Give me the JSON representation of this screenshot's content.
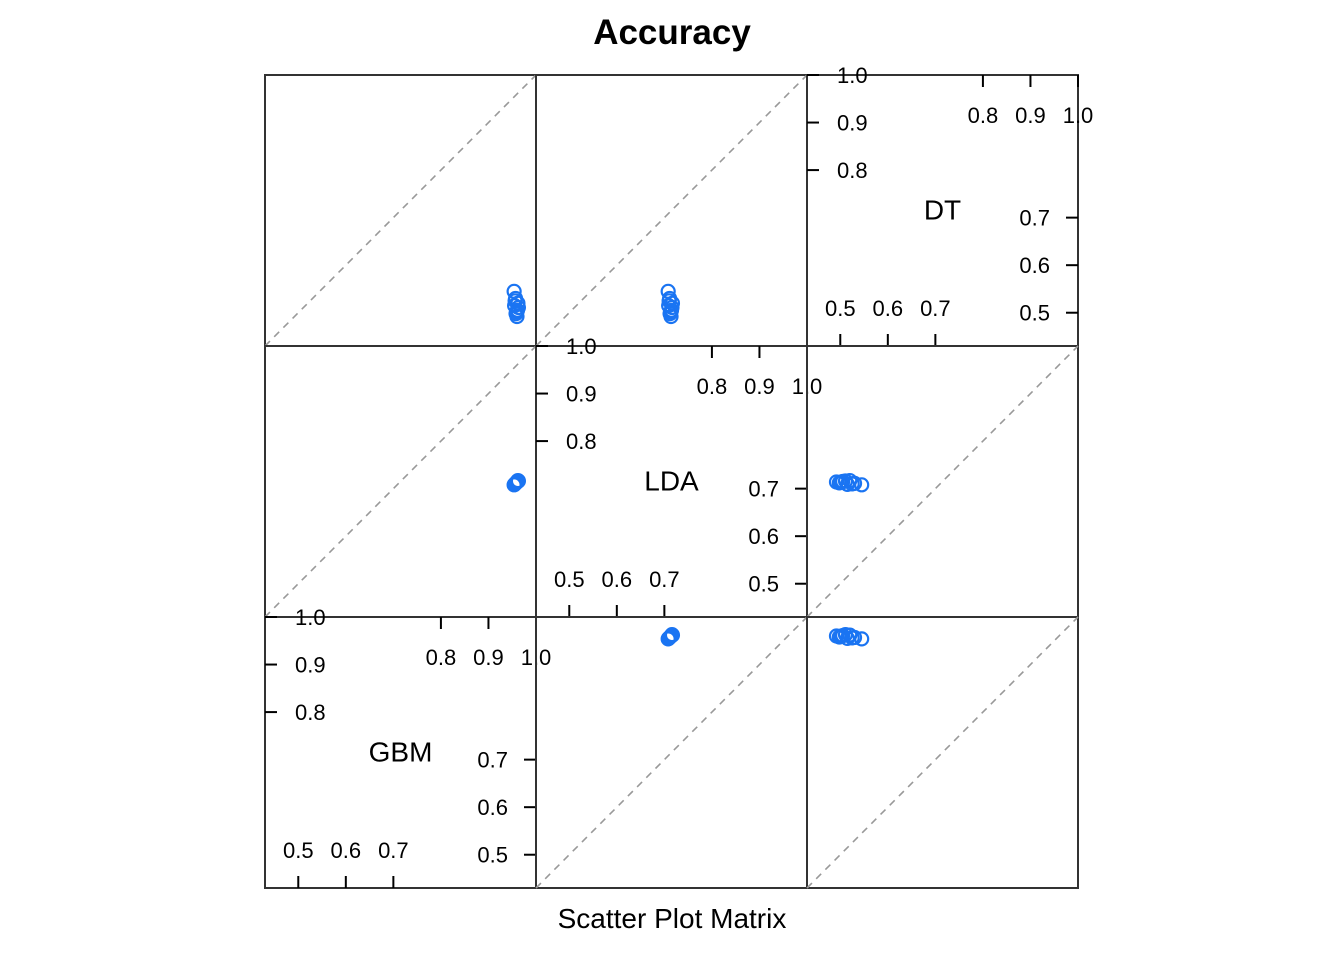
{
  "colors": {
    "points": "#1a74f2",
    "reference_line": "#999999",
    "frame": "#333333"
  },
  "chart_data": {
    "type": "scatter",
    "subtype": "scatter-plot-matrix",
    "title": "Accuracy",
    "xlabel": "Scatter Plot Matrix",
    "variables": [
      "GBM",
      "LDA",
      "DT"
    ],
    "axis_range": [
      0.43,
      1.0
    ],
    "tick_values": [
      0.5,
      0.6,
      0.7,
      0.8,
      0.9,
      1.0
    ],
    "tick_labels": [
      "0.5",
      "0.6",
      "0.7",
      "0.8",
      "0.9",
      "1.0"
    ],
    "reference_line": "y = x (dashed)",
    "samples": {
      "GBM": [
        0.958,
        0.961,
        0.955,
        0.962,
        0.957,
        0.96,
        0.954,
        0.959,
        0.963,
        0.956
      ],
      "LDA": [
        0.712,
        0.715,
        0.709,
        0.717,
        0.711,
        0.714,
        0.708,
        0.713,
        0.716,
        0.71
      ],
      "DT": [
        0.498,
        0.505,
        0.515,
        0.52,
        0.53,
        0.492,
        0.545,
        0.502,
        0.511,
        0.525
      ]
    }
  }
}
